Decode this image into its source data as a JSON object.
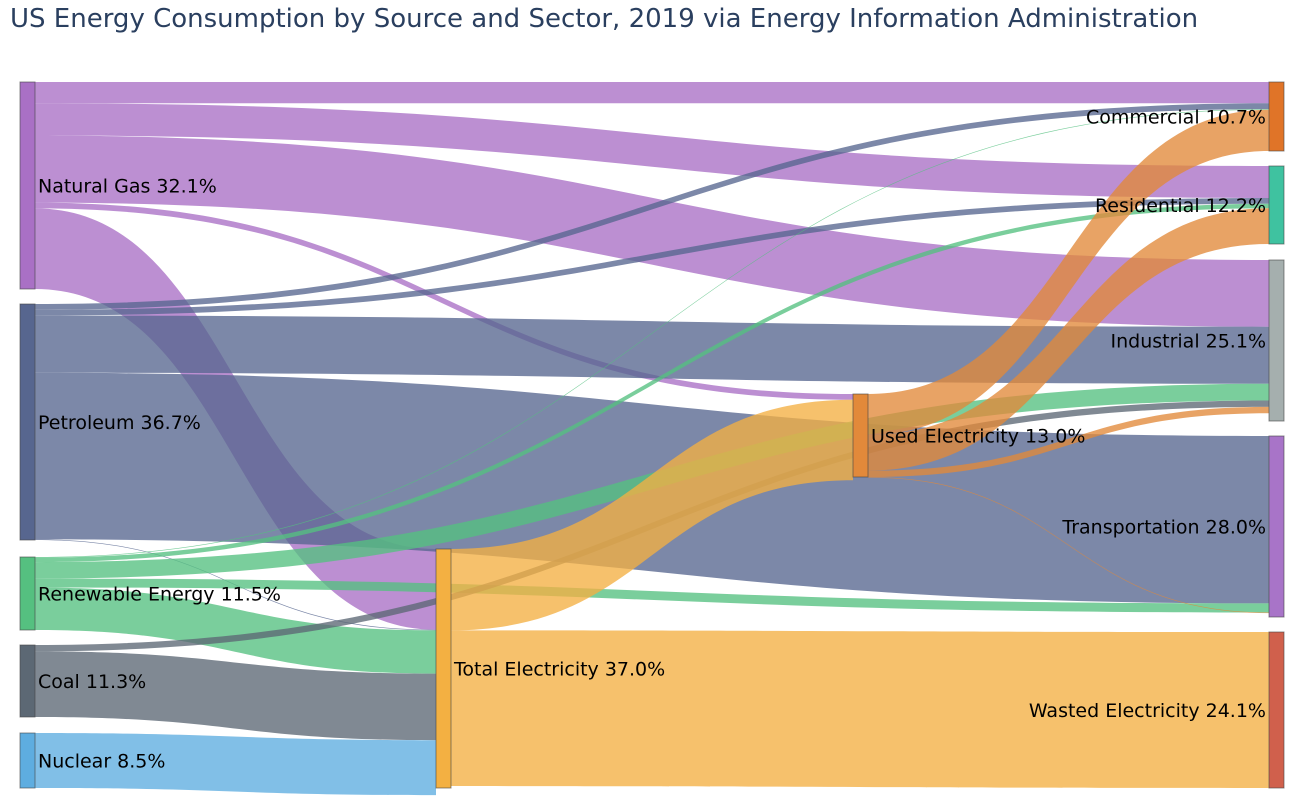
{
  "title": "US Energy Consumption by Source and Sector, 2019 via Energy Information Administration",
  "nodes": [
    {
      "id": "natural_gas",
      "label": "Natural Gas 32.1%",
      "value": 32.1,
      "color": "#a970c5"
    },
    {
      "id": "petroleum",
      "label": "Petroleum 36.7%",
      "value": 36.7,
      "color": "#57668f"
    },
    {
      "id": "renewable",
      "label": "Renewable Energy 11.5%",
      "value": 11.5,
      "color": "#55c080"
    },
    {
      "id": "coal",
      "label": "Coal 11.3%",
      "value": 11.3,
      "color": "#5c6874"
    },
    {
      "id": "nuclear",
      "label": "Nuclear 8.5%",
      "value": 8.5,
      "color": "#5eade0"
    },
    {
      "id": "total_electricity",
      "label": "Total Electricity 37.0%",
      "value": 37.0,
      "color": "#f3b042"
    },
    {
      "id": "used_electricity",
      "label": "Used Electricity 13.0%",
      "value": 13.0,
      "color": "#e2893a"
    },
    {
      "id": "commercial",
      "label": "Commercial 10.7%",
      "value": 10.7,
      "color": "#e07428"
    },
    {
      "id": "residential",
      "label": "Residential 12.2%",
      "value": 12.2,
      "color": "#3fc2a0"
    },
    {
      "id": "industrial",
      "label": "Industrial 25.1%",
      "value": 25.1,
      "color": "#a5afae"
    },
    {
      "id": "transportation",
      "label": "Transportation 28.0%",
      "value": 28.0,
      "color": "#a874c8"
    },
    {
      "id": "wasted_electricity",
      "label": "Wasted Electricity 24.1%",
      "value": 24.1,
      "color": "#d0604c"
    }
  ],
  "links": [
    {
      "source": "natural_gas",
      "target": "commercial",
      "value": 3.3
    },
    {
      "source": "natural_gas",
      "target": "residential",
      "value": 5.0
    },
    {
      "source": "natural_gas",
      "target": "industrial",
      "value": 10.4
    },
    {
      "source": "natural_gas",
      "target": "used_electricity",
      "value": 0.9
    },
    {
      "source": "natural_gas",
      "target": "total_electricity",
      "value": 12.5
    },
    {
      "source": "petroleum",
      "target": "commercial",
      "value": 0.9
    },
    {
      "source": "petroleum",
      "target": "residential",
      "value": 0.9
    },
    {
      "source": "petroleum",
      "target": "industrial",
      "value": 8.9
    },
    {
      "source": "petroleum",
      "target": "transportation",
      "value": 25.9
    },
    {
      "source": "petroleum",
      "target": "total_electricity",
      "value": 0.1
    },
    {
      "source": "renewable",
      "target": "commercial",
      "value": 0.1
    },
    {
      "source": "renewable",
      "target": "residential",
      "value": 0.7
    },
    {
      "source": "renewable",
      "target": "industrial",
      "value": 2.6
    },
    {
      "source": "renewable",
      "target": "transportation",
      "value": 1.4
    },
    {
      "source": "renewable",
      "target": "total_electricity",
      "value": 6.7
    },
    {
      "source": "coal",
      "target": "industrial",
      "value": 1.0
    },
    {
      "source": "coal",
      "target": "total_electricity",
      "value": 10.3
    },
    {
      "source": "nuclear",
      "target": "total_electricity",
      "value": 8.5
    },
    {
      "source": "total_electricity",
      "target": "used_electricity",
      "value": 12.6
    },
    {
      "source": "total_electricity",
      "target": "wasted_electricity",
      "value": 24.1
    },
    {
      "source": "used_electricity",
      "target": "commercial",
      "value": 6.4
    },
    {
      "source": "used_electricity",
      "target": "residential",
      "value": 5.6
    },
    {
      "source": "used_electricity",
      "target": "industrial",
      "value": 1.0
    },
    {
      "source": "used_electricity",
      "target": "transportation",
      "value": 0.1
    }
  ]
}
